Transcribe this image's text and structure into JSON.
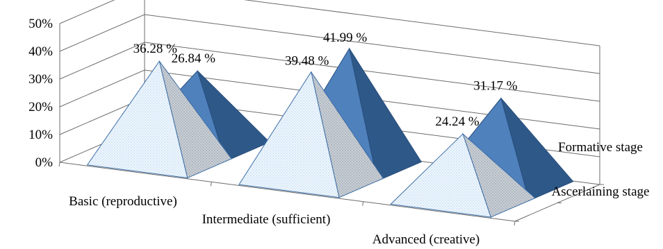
{
  "chart_data": {
    "type": "bar",
    "subtype": "3d-pyramid",
    "categories": [
      "Basic (reproductive)",
      "Intermediate (sufficient)",
      "Advanced (creative)"
    ],
    "series": [
      {
        "name": "Ascerlaining stage",
        "values": [
          36.28,
          39.48,
          24.24
        ],
        "labels": [
          "36.28 %",
          "39.48 %",
          "24.24 %"
        ],
        "fill": "#eaf3fb",
        "pattern": "dotted"
      },
      {
        "name": "Formative stage",
        "values": [
          26.84,
          41.99,
          31.17
        ],
        "labels": [
          "26.84 %",
          "41.99 %",
          "31.17 %"
        ],
        "fill": "#4a7ab4"
      }
    ],
    "y_ticks": [
      "0%",
      "10%",
      "20%",
      "30%",
      "40%",
      "50%"
    ],
    "ylim": [
      0,
      50
    ],
    "grid": true,
    "legend": "none (series names on depth axis, right)",
    "title": "",
    "xlabel": "",
    "ylabel": ""
  }
}
